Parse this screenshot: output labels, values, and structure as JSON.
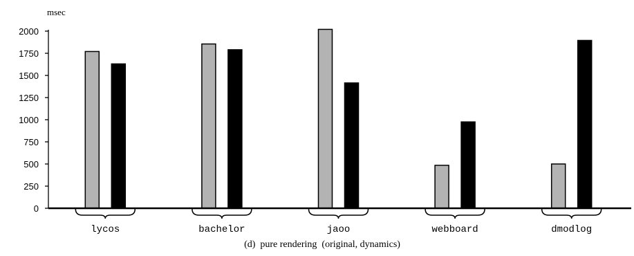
{
  "chart_data": {
    "type": "bar",
    "title": "",
    "caption": "(d)  pure rendering  (original, dynamics)",
    "ylabel": "msec",
    "xlabel": "",
    "ylim": [
      0,
      2000
    ],
    "yticks": [
      0,
      250,
      500,
      750,
      1000,
      1250,
      1500,
      1750,
      2000
    ],
    "grid": false,
    "categories": [
      "lycos",
      "bachelor",
      "jaoo",
      "webboard",
      "dmodlog"
    ],
    "series": [
      {
        "values": [
          1770,
          1855,
          2020,
          485,
          500
        ],
        "color": "#b3b3b3"
      },
      {
        "values": [
          1630,
          1790,
          1415,
          975,
          1895
        ],
        "color": "#000000"
      }
    ]
  }
}
